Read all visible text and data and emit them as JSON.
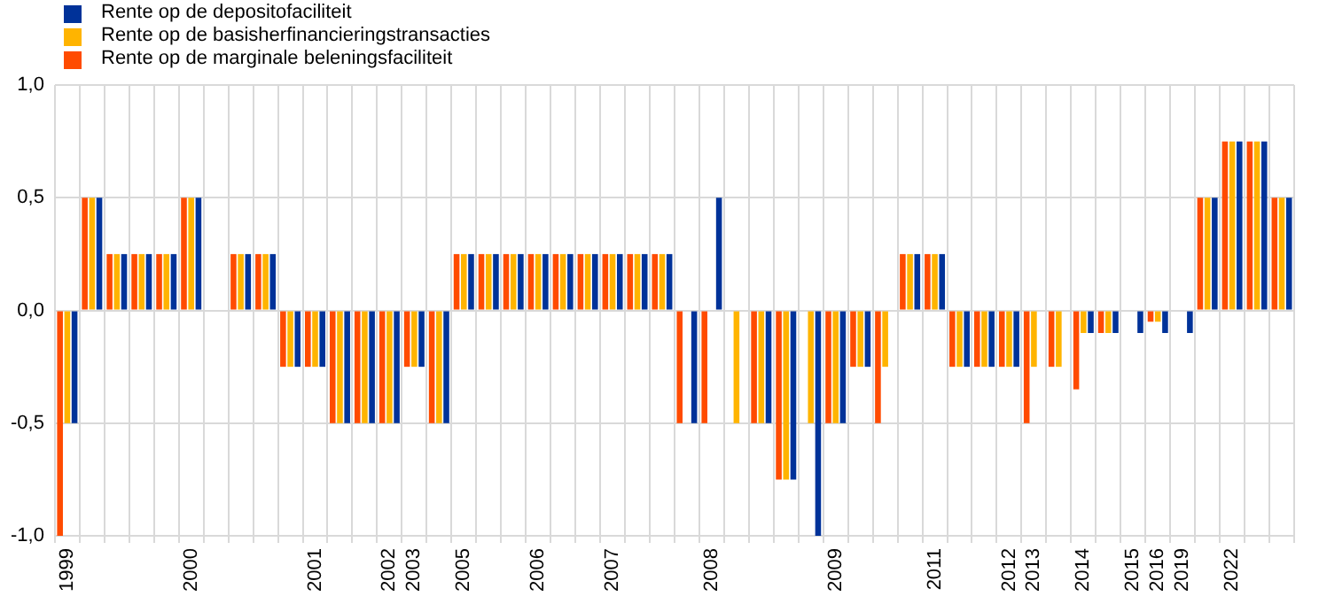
{
  "chart_data": {
    "type": "bar",
    "categories": [
      "1999",
      null,
      null,
      null,
      null,
      "2000",
      null,
      null,
      null,
      null,
      "2001",
      null,
      null,
      "2002",
      "2003",
      null,
      "2005",
      null,
      null,
      "2006",
      null,
      null,
      "2007",
      null,
      null,
      null,
      "2008",
      null,
      null,
      null,
      null,
      "2009",
      null,
      null,
      null,
      "2011",
      null,
      null,
      "2012",
      "2013",
      null,
      "2014",
      null,
      "2015",
      "2016",
      "2019",
      null,
      "2022",
      null,
      null
    ],
    "series": [
      {
        "name": "Rente op de depositofaciliteit",
        "color": "#003299",
        "values": [
          -0.5,
          0.5,
          0.25,
          0.25,
          0.25,
          0.5,
          0,
          0.25,
          0.25,
          -0.25,
          -0.25,
          -0.5,
          -0.5,
          -0.5,
          -0.25,
          -0.5,
          0.25,
          0.25,
          0.25,
          0.25,
          0.25,
          0.25,
          0.25,
          0.25,
          0.25,
          -0.5,
          0.5,
          0,
          -0.5,
          -0.75,
          -1.0,
          -0.5,
          -0.25,
          0,
          0.25,
          0.25,
          -0.25,
          -0.25,
          -0.25,
          0,
          0,
          -0.1,
          -0.1,
          -0.1,
          -0.1,
          -0.1,
          0.5,
          0.75,
          0.75,
          0.5
        ]
      },
      {
        "name": "Rente op de basisherfinancieringstransacties",
        "color": "#ffb400",
        "values": [
          -0.5,
          0.5,
          0.25,
          0.25,
          0.25,
          0.5,
          0,
          0.25,
          0.25,
          -0.25,
          -0.25,
          -0.5,
          -0.5,
          -0.5,
          -0.25,
          -0.5,
          0.25,
          0.25,
          0.25,
          0.25,
          0.25,
          0.25,
          0.25,
          0.25,
          0.25,
          0,
          0,
          -0.5,
          -0.5,
          -0.75,
          -0.5,
          -0.5,
          -0.25,
          -0.25,
          0.25,
          0.25,
          -0.25,
          -0.25,
          -0.25,
          -0.25,
          -0.25,
          -0.1,
          -0.1,
          0,
          -0.05,
          0,
          0.5,
          0.75,
          0.75,
          0.5
        ]
      },
      {
        "name": "Rente op de marginale beleningsfaciliteit",
        "color": "#ff4b00",
        "values": [
          -1.0,
          0.5,
          0.25,
          0.25,
          0.25,
          0.5,
          0,
          0.25,
          0.25,
          -0.25,
          -0.25,
          -0.5,
          -0.5,
          -0.5,
          -0.25,
          -0.5,
          0.25,
          0.25,
          0.25,
          0.25,
          0.25,
          0.25,
          0.25,
          0.25,
          0.25,
          -0.5,
          -0.5,
          0,
          -0.5,
          -0.75,
          0,
          -0.5,
          -0.25,
          -0.5,
          0.25,
          0.25,
          -0.25,
          -0.25,
          -0.25,
          -0.5,
          -0.25,
          -0.35,
          -0.1,
          0,
          -0.05,
          0,
          0.5,
          0.75,
          0.75,
          0.5
        ]
      }
    ],
    "ylim": [
      -1.0,
      1.0
    ],
    "yticks": [
      {
        "value": -1.0,
        "label": "-1,0"
      },
      {
        "value": -0.5,
        "label": "-0,5"
      },
      {
        "value": 0,
        "label": "0,0"
      },
      {
        "value": 0.5,
        "label": "0,5"
      },
      {
        "value": 1.0,
        "label": "1,0"
      }
    ],
    "grid": true,
    "legend": "top left"
  }
}
